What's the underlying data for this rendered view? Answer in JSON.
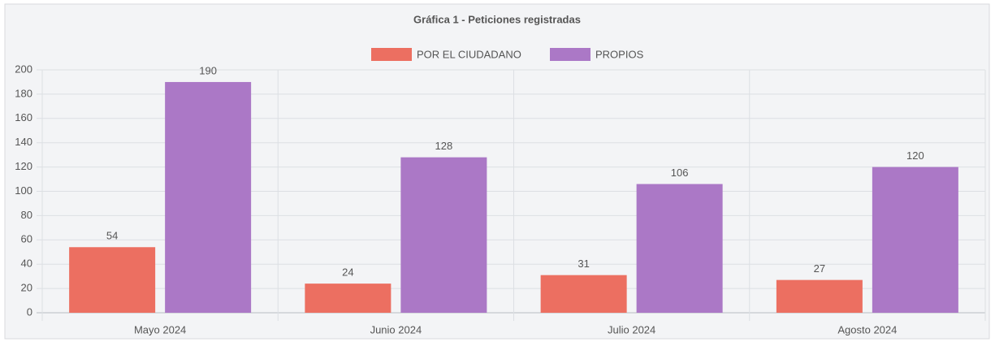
{
  "chart_data": {
    "type": "bar",
    "title": "Gráfica 1 - Peticiones registradas",
    "categories": [
      "Mayo 2024",
      "Junio 2024",
      "Julio 2024",
      "Agosto 2024"
    ],
    "series": [
      {
        "name": "POR EL CIUDADANO",
        "color": "#ec6f61",
        "values": [
          54,
          24,
          31,
          27
        ]
      },
      {
        "name": "PROPIOS",
        "color": "#ab78c6",
        "values": [
          190,
          128,
          106,
          120
        ]
      }
    ],
    "ylim": [
      0,
      200
    ],
    "yticks": [
      0,
      20,
      40,
      60,
      80,
      100,
      120,
      140,
      160,
      180,
      200
    ],
    "grid": true,
    "legend": "top"
  }
}
